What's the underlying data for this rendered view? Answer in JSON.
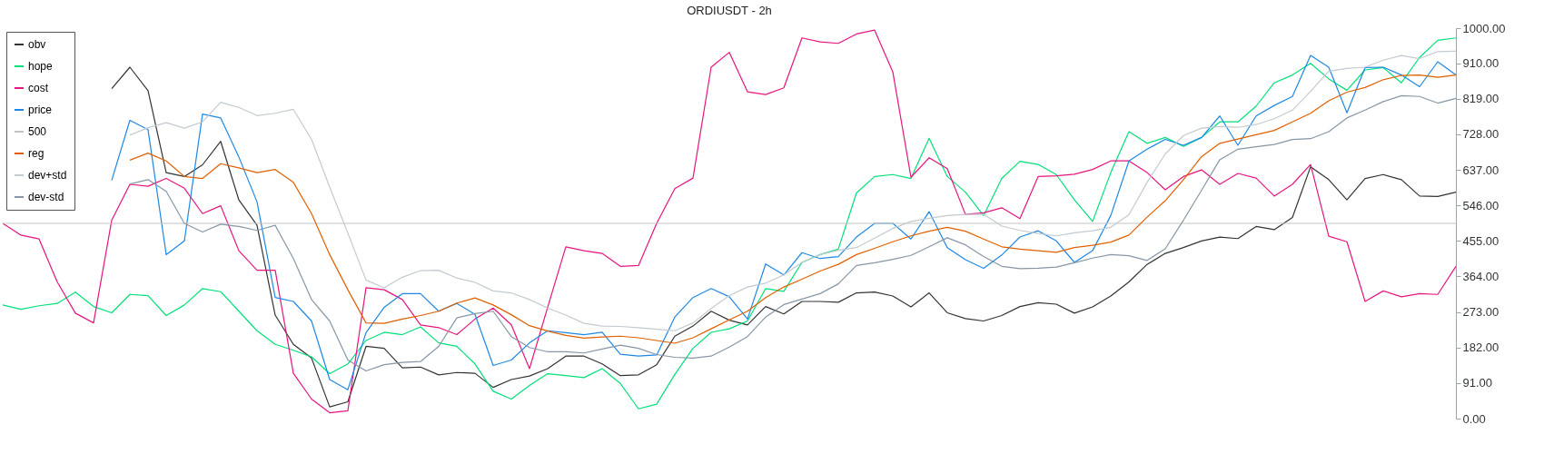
{
  "chart_data": {
    "type": "line",
    "title": "ORDIUSDT - 2h",
    "categories": [
      null,
      null,
      null,
      null,
      null,
      null,
      null,
      null,
      null,
      null,
      null,
      null,
      null,
      null,
      null,
      null,
      null,
      null,
      null,
      null,
      null,
      null,
      null,
      null,
      null,
      null,
      null,
      null,
      null,
      null,
      null,
      null,
      null,
      null,
      null,
      null,
      null,
      null,
      null,
      null,
      null,
      null,
      null,
      null,
      null,
      null,
      null,
      null,
      null,
      null,
      null,
      null,
      null,
      null,
      null,
      null,
      null,
      null,
      null,
      null,
      null,
      null,
      null,
      null,
      null,
      null,
      null,
      null,
      null,
      null,
      null,
      null,
      null,
      null,
      null,
      null,
      null,
      null,
      null,
      null,
      null
    ],
    "series": [
      {
        "name": "obv",
        "color": "#333333",
        "values": [
          null,
          null,
          null,
          null,
          null,
          null,
          845,
          900,
          840,
          630,
          620,
          650,
          710,
          560,
          495,
          265,
          190,
          155,
          30,
          43,
          185,
          180,
          130,
          132,
          112,
          118,
          116,
          80,
          100,
          109,
          128,
          160,
          160,
          140,
          110,
          112,
          138,
          211,
          237,
          275,
          252,
          240,
          287,
          268,
          300,
          300,
          298,
          322,
          324,
          314,
          286,
          322,
          271,
          256,
          250,
          264,
          287,
          297,
          293,
          270,
          286,
          314,
          350,
          395,
          423,
          438,
          455,
          465,
          461,
          492,
          484,
          515,
          645,
          612,
          560,
          615,
          625,
          612,
          570,
          569,
          580
        ]
      },
      {
        "name": "hope",
        "color": "#00e07a",
        "values": [
          291,
          280,
          289,
          295,
          324,
          287,
          271,
          318,
          315,
          264,
          291,
          333,
          325,
          275,
          225,
          190,
          175,
          158,
          115,
          140,
          200,
          221,
          215,
          235,
          194,
          185,
          140,
          70,
          50,
          85,
          115,
          110,
          105,
          128,
          90,
          25,
          37,
          113,
          180,
          221,
          230,
          250,
          333,
          326,
          400,
          420,
          434,
          578,
          620,
          625,
          615,
          718,
          620,
          580,
          520,
          615,
          659,
          651,
          625,
          560,
          505,
          630,
          735,
          705,
          720,
          697,
          720,
          760,
          760,
          800,
          860,
          880,
          910,
          870,
          841,
          893,
          899,
          860,
          925,
          969,
          975
        ]
      },
      {
        "name": "cost",
        "color": "#e6157f",
        "values": [
          500,
          470,
          460,
          350,
          270,
          245,
          508,
          600,
          595,
          615,
          590,
          525,
          545,
          430,
          380,
          380,
          116,
          50,
          15,
          20,
          335,
          330,
          305,
          240,
          233,
          215,
          255,
          283,
          240,
          128,
          285,
          440,
          430,
          423,
          390,
          392,
          500,
          589,
          616,
          900,
          938,
          837,
          830,
          847,
          975,
          965,
          961,
          985,
          995,
          888,
          618,
          668,
          640,
          523,
          527,
          540,
          512,
          620,
          622,
          626,
          638,
          660,
          660,
          630,
          586,
          620,
          637,
          600,
          628,
          616,
          570,
          600,
          651,
          467,
          453,
          300,
          327,
          312,
          320,
          318,
          390
        ]
      },
      {
        "name": "price",
        "color": "#1e88e5",
        "values": [
          null,
          null,
          null,
          null,
          null,
          null,
          610,
          764,
          740,
          420,
          455,
          780,
          770,
          670,
          555,
          310,
          300,
          250,
          100,
          74,
          220,
          285,
          320,
          320,
          275,
          295,
          267,
          136,
          150,
          194,
          225,
          220,
          215,
          221,
          165,
          160,
          163,
          260,
          310,
          333,
          312,
          255,
          396,
          368,
          425,
          410,
          415,
          465,
          500,
          500,
          460,
          530,
          438,
          407,
          385,
          419,
          465,
          481,
          455,
          400,
          430,
          520,
          660,
          690,
          715,
          700,
          720,
          775,
          700,
          775,
          802,
          825,
          930,
          900,
          783,
          899,
          900,
          880,
          850,
          914,
          880
        ]
      },
      {
        "name": "500",
        "color": "#c4c4c4",
        "values": [
          500,
          500,
          500,
          500,
          500,
          500,
          500,
          500,
          500,
          500,
          500,
          500,
          500,
          500,
          500,
          500,
          500,
          500,
          500,
          500,
          500,
          500,
          500,
          500,
          500,
          500,
          500,
          500,
          500,
          500,
          500,
          500,
          500,
          500,
          500,
          500,
          500,
          500,
          500,
          500,
          500,
          500,
          500,
          500,
          500,
          500,
          500,
          500,
          500,
          500,
          500,
          500,
          500,
          500,
          500,
          500,
          500,
          500,
          500,
          500,
          500,
          500,
          500,
          500,
          500,
          500,
          500,
          500,
          500,
          500,
          500,
          500,
          500,
          500,
          500,
          500,
          500,
          500,
          500,
          500,
          500
        ]
      },
      {
        "name": "reg",
        "color": "#e06000",
        "values": [
          null,
          null,
          null,
          null,
          null,
          null,
          null,
          662,
          680,
          660,
          620,
          615,
          653,
          642,
          630,
          638,
          605,
          525,
          420,
          330,
          245,
          244,
          255,
          264,
          275,
          296,
          309,
          291,
          266,
          238,
          224,
          213,
          206,
          209,
          211,
          207,
          200,
          193,
          207,
          230,
          253,
          275,
          310,
          337,
          357,
          378,
          395,
          420,
          436,
          453,
          468,
          480,
          490,
          480,
          460,
          440,
          434,
          430,
          426,
          438,
          444,
          452,
          470,
          516,
          558,
          612,
          671,
          705,
          716,
          727,
          738,
          760,
          782,
          814,
          836,
          848,
          868,
          879,
          880,
          874,
          880
        ]
      },
      {
        "name": "dev+std",
        "color": "#c3cad1",
        "values": [
          null,
          null,
          null,
          null,
          null,
          null,
          null,
          726,
          745,
          758,
          744,
          760,
          810,
          797,
          776,
          782,
          792,
          715,
          593,
          475,
          355,
          335,
          362,
          379,
          380,
          360,
          349,
          327,
          322,
          305,
          283,
          265,
          244,
          237,
          236,
          233,
          229,
          225,
          245,
          282,
          315,
          337,
          347,
          368,
          400,
          420,
          431,
          438,
          462,
          487,
          505,
          513,
          520,
          523,
          523,
          493,
          482,
          474,
          468,
          476,
          481,
          490,
          522,
          605,
          678,
          725,
          744,
          748,
          746,
          753,
          768,
          790,
          838,
          890,
          897,
          900,
          918,
          930,
          922,
          940,
          941
        ]
      },
      {
        "name": "dev-std",
        "color": "#8797a6",
        "values": [
          null,
          null,
          null,
          null,
          null,
          null,
          null,
          601,
          612,
          582,
          500,
          478,
          498,
          492,
          482,
          495,
          410,
          305,
          250,
          150,
          122,
          138,
          144,
          146,
          185,
          258,
          269,
          275,
          210,
          182,
          171,
          171,
          168,
          178,
          188,
          180,
          164,
          157,
          155,
          160,
          183,
          210,
          260,
          292,
          306,
          320,
          345,
          392,
          399,
          408,
          418,
          440,
          463,
          445,
          415,
          390,
          384,
          385,
          388,
          399,
          411,
          420,
          417,
          405,
          435,
          508,
          585,
          663,
          690,
          696,
          702,
          715,
          717,
          735,
          770,
          790,
          812,
          827,
          825,
          808,
          820
        ]
      }
    ],
    "ylim": [
      0,
      1000
    ],
    "yticks": [
      {
        "value": 0,
        "label": "0.00"
      },
      {
        "value": 91,
        "label": "91.00"
      },
      {
        "value": 182,
        "label": "182.00"
      },
      {
        "value": 273,
        "label": "273.00"
      },
      {
        "value": 364,
        "label": "364.00"
      },
      {
        "value": 455,
        "label": "455.00"
      },
      {
        "value": 546,
        "label": "546.00"
      },
      {
        "value": 637,
        "label": "637.00"
      },
      {
        "value": 728,
        "label": "728.00"
      },
      {
        "value": 819,
        "label": "819.00"
      },
      {
        "value": 910,
        "label": "910.00"
      },
      {
        "value": 1000,
        "label": "1000.00"
      }
    ],
    "tick_labels": "y",
    "legend": "top left"
  }
}
